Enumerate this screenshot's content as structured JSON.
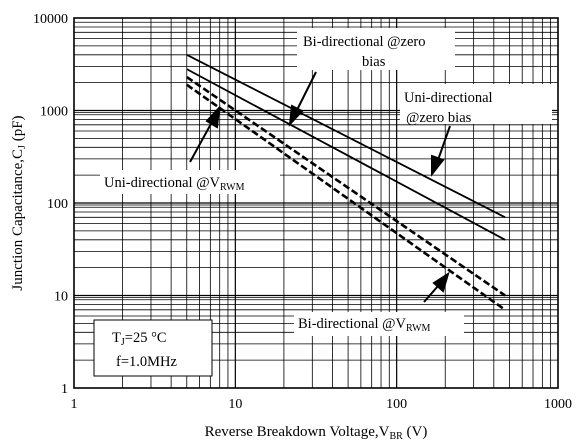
{
  "chart_data": {
    "type": "line",
    "title": "",
    "x_scale": "log",
    "y_scale": "log",
    "xlim": [
      1,
      1000
    ],
    "ylim": [
      1,
      10000
    ],
    "grid": true,
    "x_ticks": [
      "1",
      "10",
      "100",
      "1000"
    ],
    "y_ticks": [
      "1",
      "10",
      "100",
      "1000",
      "10000"
    ],
    "xlabel": {
      "main": "Reverse  Breakdown Voltage,V",
      "sub": "BR",
      "tail": "  (V)"
    },
    "ylabel": {
      "main": "Junction Capacitance,C",
      "sub": "J",
      "tail": "  (pF)"
    },
    "series": [
      {
        "name": "Bi-directional @zero bias",
        "style": "solid",
        "x": [
          5,
          470
        ],
        "y": [
          4000,
          70
        ]
      },
      {
        "name": "Uni-directional @zero bias",
        "style": "solid",
        "x": [
          5,
          470
        ],
        "y": [
          2800,
          40
        ]
      },
      {
        "name": "Uni-directional @VRWM",
        "style": "dashed",
        "x": [
          5,
          470
        ],
        "y": [
          2300,
          10
        ]
      },
      {
        "name": "Bi-directional @VRWM",
        "style": "dashed",
        "x": [
          5,
          470
        ],
        "y": [
          1900,
          7
        ]
      }
    ],
    "annotations": {
      "bi_zero": {
        "line1": "Bi-directional @zero",
        "line2": "bias"
      },
      "uni_zero": {
        "line1": "Uni-directional",
        "line2": "@zero bias"
      },
      "uni_vrwm": {
        "main": "Uni-directional @V",
        "sub": "RWM"
      },
      "bi_vrwm": {
        "main": "Bi-directional @V",
        "sub": "RWM"
      },
      "conditions": {
        "tj_main": "T",
        "tj_sub": "J",
        "tj_tail": "=25 °C",
        "freq": "f=1.0MHz"
      }
    }
  }
}
